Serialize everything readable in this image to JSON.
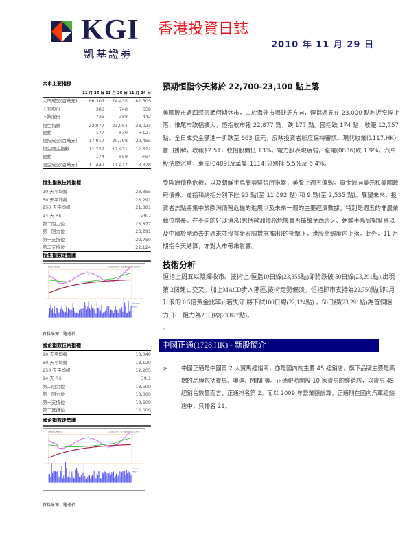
{
  "header": {
    "logo_text": "KGI",
    "logo_cn": "凱基證券",
    "title": "香港投資日誌",
    "date": "2010 年 11 月 29 日",
    "brand_colors": {
      "navy": "#1a1f4f",
      "red": "#ff3b00",
      "green": "#4caf3a",
      "title_red": "#e8141e"
    }
  },
  "market": {
    "heading": "大市主要指標",
    "columns": [
      "11 月 26 日",
      "11 月 25 日",
      "11 月 24 日"
    ],
    "rows": [
      {
        "label": "大市成交(百萬元)",
        "values": [
          "66,307",
          "74,435",
          "82,305"
        ]
      },
      {
        "label": "上升股份",
        "values": [
          "383",
          "748",
          "658"
        ]
      },
      {
        "label": "下跌股份",
        "values": [
          "735",
          "388",
          "442"
        ]
      },
      {
        "label": "恒生指數",
        "values": [
          "22,877",
          "23,054",
          "23,023"
        ]
      },
      {
        "label": "變動",
        "values": [
          "-177",
          "+30",
          "+127"
        ]
      },
      {
        "label": "恒指成交(百萬元)",
        "values": [
          "17,917",
          "20,798",
          "22,455"
        ]
      },
      {
        "label": "恒生國企指數",
        "values": [
          "12,757",
          "12,931",
          "12,872"
        ]
      },
      {
        "label": "變動",
        "values": [
          "-174",
          "+59",
          "+54"
        ]
      },
      {
        "label": "國企成交(百萬元)",
        "values": [
          "11,447",
          "11,412",
          "13,828"
        ]
      }
    ]
  },
  "hsi_tech": {
    "heading": "恒生指數技術指標",
    "rows": [
      {
        "label": "10 天平均線",
        "value": "23,355"
      },
      {
        "label": "50 天平均線",
        "value": "23,291"
      },
      {
        "label": "250 天平均線",
        "value": "21,381"
      },
      {
        "label": "14 天 RSI",
        "value": "39.7"
      },
      {
        "label": "第二阻力位",
        "value": "23,877"
      },
      {
        "label": "第一阻力位",
        "value": "23,291"
      },
      {
        "label": "第一支持位",
        "value": "22,750"
      },
      {
        "label": "第二支持位",
        "value": "22,124"
      }
    ]
  },
  "hsi_chart": {
    "heading": "恒生指數走勢圖",
    "caption_left": "Daily QHSI",
    "caption_right": "11/18/2009 - 11/29/2010 (GMT)",
    "volume_label": "Volume",
    "volume_unit": "HKD"
  },
  "source1": "資料來源：路透社",
  "hscei_tech": {
    "heading": "國企指數技術指標",
    "rows": [
      {
        "label": "10 天平均線",
        "value": "13,040"
      },
      {
        "label": "50 天平均線",
        "value": "13,120"
      },
      {
        "label": "250 天平均線",
        "value": "12,205"
      },
      {
        "label": "14 天 RSI",
        "value": "39.1"
      },
      {
        "label": "第二阻力位",
        "value": "13,500"
      },
      {
        "label": "第一阻力位",
        "value": "13,000"
      },
      {
        "label": "第一支持位",
        "value": "12,500"
      },
      {
        "label": "第二支持位",
        "value": "12,000"
      }
    ]
  },
  "hscei_chart": {
    "heading": "國企指數走勢圖",
    "caption_left": "Daily QHSCE",
    "caption_right": "11/18/2009 - 11/29/2010 (GMT)",
    "volume_label": "Volume",
    "volume_unit": "HKD"
  },
  "source2": "資料來源：路透社",
  "article": {
    "title": "預期恒指今天將於 22,700-23,100 點上落",
    "p1": "美國股市週四感恩節假期休市，由於海外市場缺乏方向，恒指週五在 23,000 點附近窄幅上落，惟尾市跌幅擴大，恒指收市報 22,877 點，跌 177 點。國指跌 174 點，收報 12,757 點。全日成交金額進一步跌至 663 億元，反映投資者態度保持審慎。現代牧業(1117.HK)首日掛牌，收報$2.51，較招股價低 13%。電力股表現疲弱，龍電(0836)跌 1.9%。汽車股沽壓沉重，東風(0489)及華晨(1114)分別挫 5.5%及 6.4%。",
    "p2": "受歐洲債務危機，以及朝鮮半島局勢緊張所拖累，美股上週五偏軟。資金流向美元和美國政府債券。道指和納指分別下挫 95 點(至 11,092 點) 和 9 點(至 2,535 點)。展望未來，投資者焦點將集中於歐洲債務危機的進展以及未來一週的主要經濟數據，特別是週五的非農業職位增長。在不同的好淡消息(包括歐洲債務危機會否擴散至西班牙、朝鮮半島局勢緊張以及中國於剛過去的週末並沒有新宏調措施推出)的衝擊下，港股將輾度內上落。此外，11 月期指今天結算，亦對大市帶來影響。",
    "tech_heading": "技術分析",
    "tech_text": "恒指上周五以陰燭收市。技術上,恒指10日線(23,355點)即將跌破 50日線(23,291點),出現第 2個死亡交叉。加上MACD步入熊區,技術走勢偏淡。恒指即市支持為22,750點(即9月升浪的 0.5倍黃金比率) ,若失守,將下試100日線(22,124點) 。50日線(23,291點)為首個阻力,下一阻力為20日線(23,877點)。",
    "tech_tail": "。",
    "ipo_banner": "中國正通(1728.HK) - 新股簡介",
    "ipo_bullet": "中國正通是中國第 2 大寶馬經銷商，亦是國內的主要 4S 經銷店，旗下品牌主要是高檔的品牌包括寶馬、奧迪、MINI 等。正通現時開設 10 家寶馬的經銷店，以寶馬 4S 經銷台數量而言，正通排名第 2。而以 2009 年營業額計算，正通則在國內汽車經銷店中，只排名 21。",
    "ipo_banner_color": "#00007f"
  }
}
